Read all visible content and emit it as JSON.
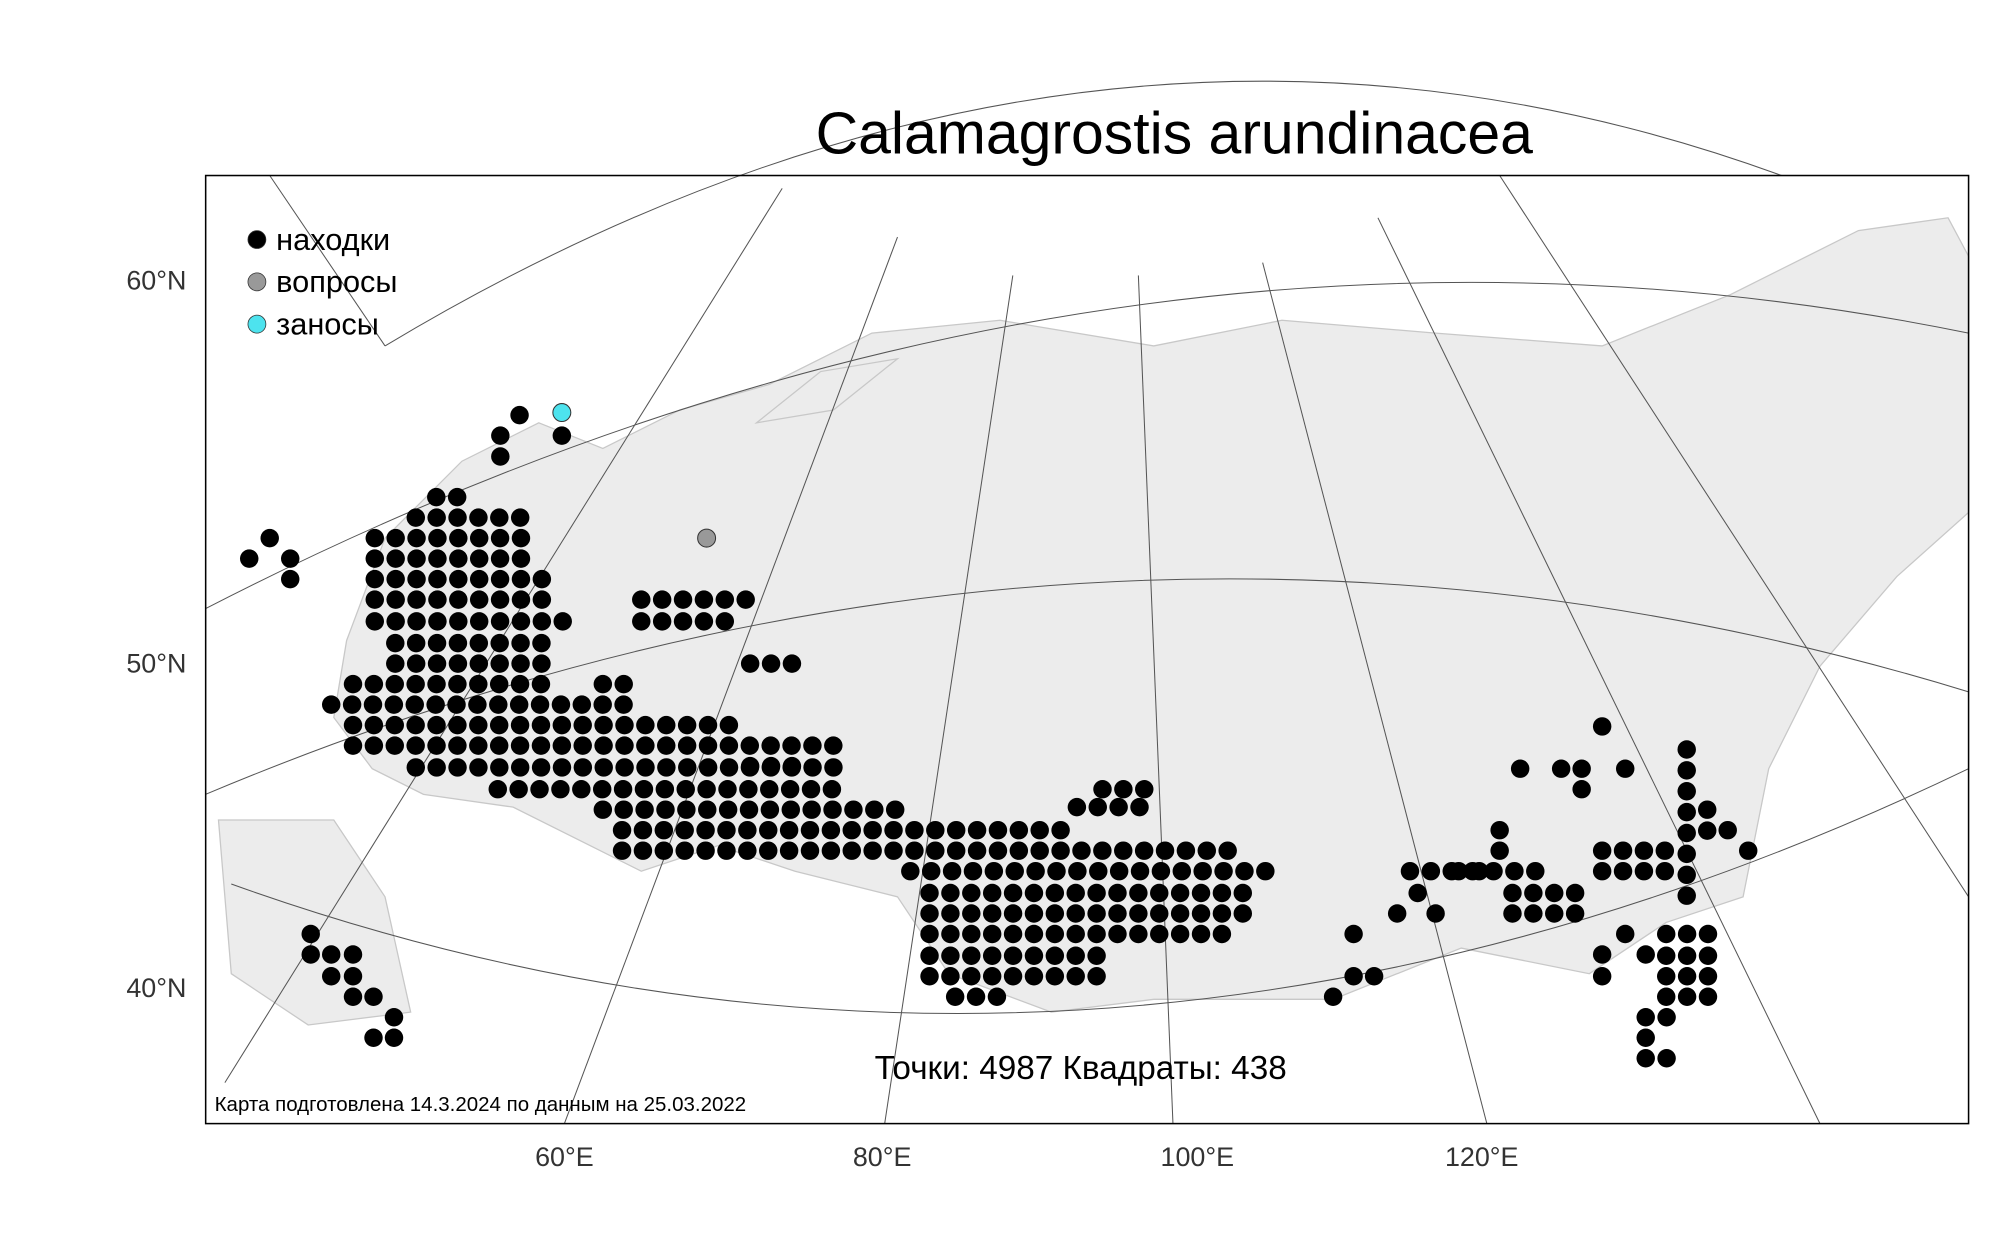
{
  "title": "Calamagrostis arundinacea",
  "legend": [
    {
      "label": "находки",
      "color": "#000000"
    },
    {
      "label": "вопросы",
      "color": "#999999"
    },
    {
      "label": "заносы",
      "color": "#4de3ee"
    }
  ],
  "lat_labels": [
    "60°N",
    "50°N",
    "40°N"
  ],
  "lon_labels": [
    "60°E",
    "80°E",
    "100°E",
    "120°E"
  ],
  "stats": "Точки: 4987 Квадраты: 438",
  "footer": "Карта подготовлена 14.3.2024 по данным на 25.03.2022"
}
